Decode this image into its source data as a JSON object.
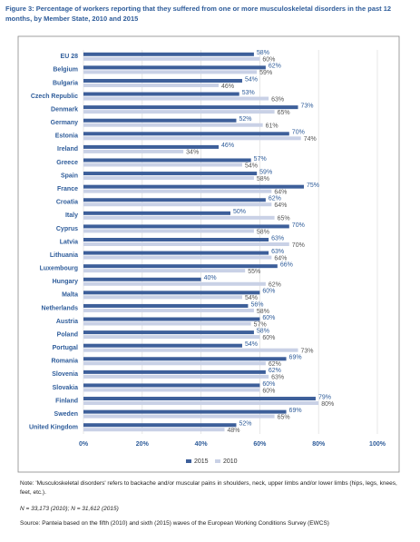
{
  "chart_data": {
    "type": "bar",
    "orientation": "horizontal",
    "title": "Figure 3:  Percentage of workers reporting that they suffered from one or more musculoskeletal disorders in the past 12 months, by Member State, 2010 and 2015",
    "categories": [
      "EU 28",
      "Belgium",
      "Bulgaria",
      "Czech Republic",
      "Denmark",
      "Germany",
      "Estonia",
      "Ireland",
      "Greece",
      "Spain",
      "France",
      "Croatia",
      "Italy",
      "Cyprus",
      "Latvia",
      "Lithuania",
      "Luxembourg",
      "Hungary",
      "Malta",
      "Netherlands",
      "Austria",
      "Poland",
      "Portugal",
      "Romania",
      "Slovenia",
      "Slovakia",
      "Finland",
      "Sweden",
      "United Kingdom"
    ],
    "series": [
      {
        "name": "2015",
        "color": "#3d5f9a",
        "values": [
          58,
          62,
          54,
          53,
          73,
          52,
          70,
          46,
          57,
          59,
          75,
          62,
          50,
          70,
          63,
          63,
          66,
          40,
          60,
          56,
          60,
          58,
          54,
          69,
          62,
          60,
          79,
          69,
          52
        ],
        "value_labels": [
          "58%",
          "62%",
          "54%",
          "53%",
          "73%",
          "52%",
          "70%",
          "46%",
          "57%",
          "59%",
          "75%",
          "62%",
          "50%",
          "70%",
          "63%",
          "63%",
          "66%",
          "40%",
          "60%",
          "56%",
          "60%",
          "58%",
          "54%",
          "69%",
          "62%",
          "60%",
          "79%",
          "69%",
          "52%"
        ]
      },
      {
        "name": "2010",
        "color": "#c9d1e6",
        "values": [
          60,
          59,
          46,
          63,
          65,
          61,
          74,
          34,
          54,
          58,
          64,
          64,
          65,
          58,
          70,
          64,
          55,
          62,
          54,
          58,
          57,
          60,
          73,
          62,
          63,
          60,
          80,
          65,
          48
        ],
        "value_labels": [
          "60%",
          "59%",
          "46%",
          "63%",
          "65%",
          "61%",
          "74%",
          "34%",
          "54%",
          "58%",
          "64%",
          "64%",
          "65%",
          "58%",
          "70%",
          "64%",
          "55%",
          "62%",
          "54%",
          "58%",
          "57%",
          "60%",
          "73%",
          "62%",
          "63%",
          "60%",
          "80%",
          "65%",
          "48%"
        ]
      }
    ],
    "xlim": [
      0,
      100
    ],
    "xticks": [
      {
        "value": 0,
        "label": "0%"
      },
      {
        "value": 20,
        "label": "20%"
      },
      {
        "value": 40,
        "label": "40%"
      },
      {
        "value": 60,
        "label": "60%"
      },
      {
        "value": 80,
        "label": "80%"
      },
      {
        "value": 100,
        "label": "100%"
      }
    ],
    "grid": true,
    "legend": "bottom",
    "notes": [
      "Note: 'Musculoskeletal disorders' refers to backache and/or muscular pains in shoulders, neck, upper limbs and/or lower limbs (hips, legs, knees, feet, etc.).",
      "N = 33,173 (2010); N = 31,612 (2015)",
      "Source: Panteia based on the fifth (2010) and sixth (2015) waves of the European Working Conditions Survey (EWCS)"
    ]
  }
}
